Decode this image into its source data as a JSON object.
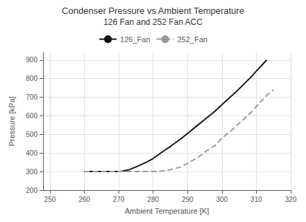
{
  "chart_data": {
    "type": "line",
    "title": "Condenser Pressure vs Ambient Temperature",
    "subtitle": "126 Fan and 252 Fan ACC",
    "xlabel": "Ambient Temperature [K]",
    "ylabel": "Pressure [kPa]",
    "xlim": [
      248,
      320
    ],
    "ylim": [
      200,
      940
    ],
    "xticks": [
      250,
      260,
      270,
      280,
      290,
      300,
      310,
      320
    ],
    "yticks": [
      200,
      300,
      400,
      500,
      600,
      700,
      800,
      900
    ],
    "grid": true,
    "legend": "top",
    "series": [
      {
        "name": "126_Fan",
        "color": "#111111",
        "line_style": "solid",
        "x": [
          260,
          270,
          271,
          273,
          275,
          278,
          280,
          283,
          285,
          288,
          290,
          293,
          295,
          298,
          300,
          303,
          305,
          308,
          310,
          313
        ],
        "values": [
          300,
          300,
          302,
          310,
          325,
          350,
          370,
          410,
          435,
          475,
          505,
          550,
          580,
          625,
          660,
          710,
          745,
          800,
          840,
          900
        ]
      },
      {
        "name": "252_Fan",
        "color": "#999999",
        "line_style": "dashed",
        "x": [
          260,
          270,
          275,
          278,
          280,
          282,
          285,
          288,
          290,
          293,
          295,
          298,
          300,
          303,
          305,
          308,
          310,
          313,
          315
        ],
        "values": [
          300,
          300,
          300,
          300,
          300,
          302,
          310,
          325,
          345,
          375,
          405,
          440,
          480,
          525,
          560,
          610,
          650,
          710,
          740
        ]
      }
    ]
  }
}
